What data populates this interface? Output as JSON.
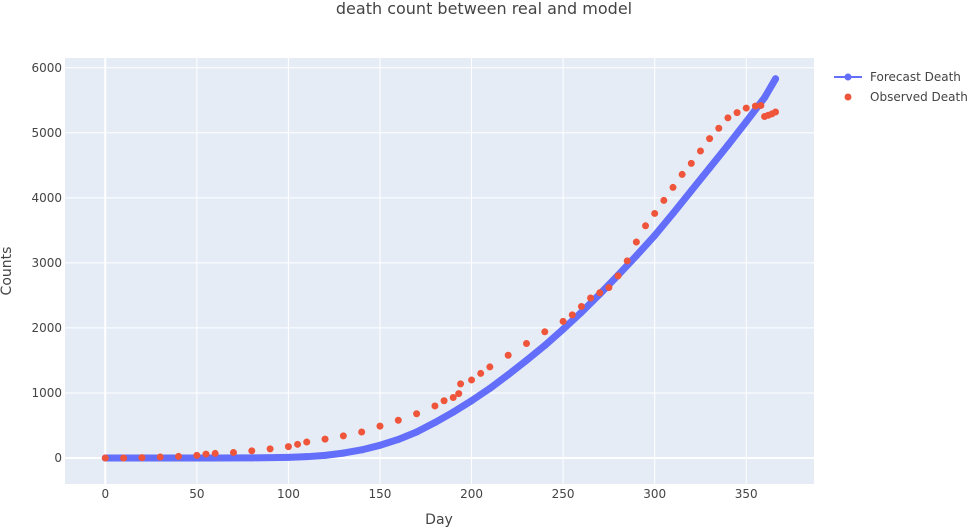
{
  "chart_data": {
    "type": "scatter",
    "title": "death count between real and model",
    "xlabel": "Day",
    "ylabel": "Counts",
    "xlim": [
      -22,
      387
    ],
    "ylim": [
      -400,
      6150
    ],
    "x_ticks": [
      0,
      50,
      100,
      150,
      200,
      250,
      300,
      350
    ],
    "y_ticks": [
      0,
      1000,
      2000,
      3000,
      4000,
      5000,
      6000
    ],
    "grid": true,
    "legend_position": "top-right",
    "series": [
      {
        "name": "Forecast Death",
        "mode": "lines+markers",
        "color": "#636efa",
        "x": [
          0,
          20,
          40,
          60,
          80,
          100,
          110,
          120,
          130,
          140,
          150,
          160,
          170,
          180,
          190,
          200,
          210,
          220,
          230,
          240,
          250,
          260,
          270,
          280,
          290,
          300,
          310,
          320,
          330,
          340,
          350,
          360,
          366
        ],
        "y": [
          0,
          0,
          0,
          0,
          2,
          10,
          20,
          40,
          75,
          125,
          195,
          285,
          400,
          545,
          705,
          880,
          1070,
          1280,
          1500,
          1730,
          1980,
          2240,
          2520,
          2810,
          3110,
          3420,
          3760,
          4110,
          4460,
          4810,
          5170,
          5540,
          5830
        ]
      },
      {
        "name": "Observed Deaths",
        "mode": "markers",
        "color": "#ef553b",
        "x": [
          0,
          10,
          20,
          30,
          40,
          50,
          55,
          60,
          70,
          80,
          90,
          100,
          105,
          110,
          120,
          130,
          140,
          150,
          160,
          170,
          180,
          185,
          190,
          193,
          194,
          200,
          205,
          210,
          220,
          230,
          240,
          250,
          255,
          260,
          265,
          270,
          275,
          280,
          285,
          290,
          295,
          300,
          305,
          310,
          315,
          320,
          325,
          330,
          335,
          340,
          345,
          350,
          355,
          358,
          360,
          362,
          364,
          366
        ],
        "y": [
          0,
          0,
          5,
          15,
          25,
          40,
          60,
          70,
          85,
          110,
          140,
          175,
          210,
          245,
          290,
          340,
          400,
          490,
          580,
          680,
          800,
          880,
          930,
          990,
          1140,
          1200,
          1300,
          1400,
          1580,
          1760,
          1940,
          2100,
          2200,
          2330,
          2460,
          2540,
          2620,
          2800,
          3030,
          3320,
          3570,
          3760,
          3960,
          4160,
          4360,
          4530,
          4720,
          4910,
          5070,
          5230,
          5310,
          5380,
          5410,
          5420,
          5250,
          5270,
          5290,
          5320
        ]
      }
    ]
  }
}
